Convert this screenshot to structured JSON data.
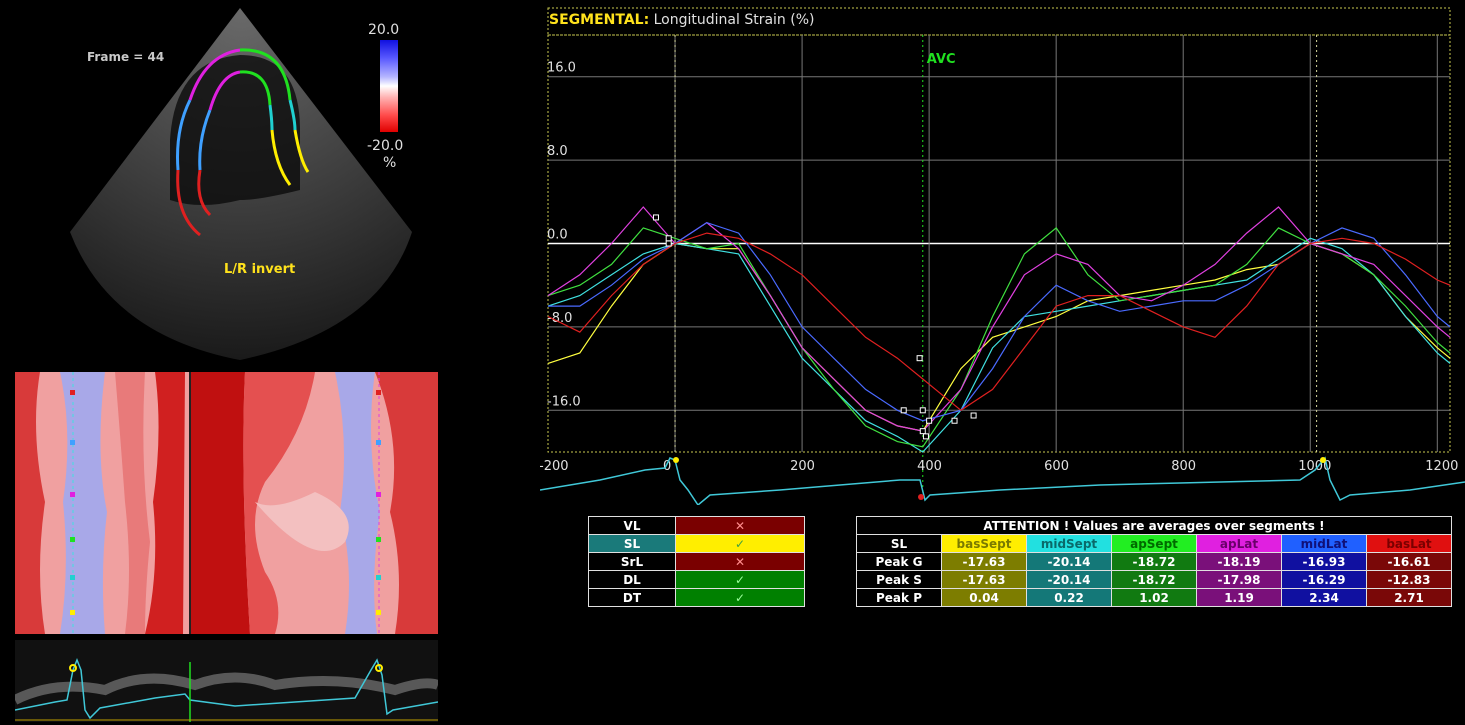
{
  "echo": {
    "frame_label": "Frame = 44",
    "scale_max": "20.0",
    "scale_min": "-20.0",
    "scale_unit": "%",
    "orientation_label": "L/R invert"
  },
  "chart": {
    "title_prefix": "SEGMENTAL:",
    "title_rest": " Longitudinal Strain (%)",
    "avc_label": "AVC",
    "y_ticks": [
      "16.0",
      "8.0",
      "0.0",
      "-8.0",
      "-16.0"
    ],
    "x_ticks": [
      "-200",
      "0",
      "200",
      "400",
      "600",
      "800",
      "1000",
      "1200"
    ]
  },
  "chart_data": {
    "type": "line",
    "title": "SEGMENTAL: Longitudinal Strain (%)",
    "xlim": [
      -200,
      1220
    ],
    "ylim": [
      -20,
      20
    ],
    "x": [
      -200,
      -150,
      -100,
      -50,
      0,
      50,
      100,
      150,
      200,
      250,
      300,
      350,
      390,
      450,
      500,
      550,
      600,
      650,
      700,
      750,
      800,
      850,
      900,
      950,
      1000,
      1050,
      1100,
      1150,
      1200,
      1220
    ],
    "series": [
      {
        "name": "basSept",
        "color": "#ffff40",
        "values": [
          -11.5,
          -10.5,
          -6,
          -2,
          0,
          -0.5,
          -0.5,
          -5,
          -10,
          -13,
          -16,
          -17.5,
          -18,
          -12,
          -9,
          -8,
          -7,
          -5.5,
          -5,
          -4.5,
          -4,
          -3.5,
          -2.5,
          -2,
          0,
          -1,
          -3,
          -7,
          -10,
          -11
        ]
      },
      {
        "name": "midSept",
        "color": "#40e0e0",
        "values": [
          -6,
          -5,
          -3,
          -1,
          0,
          -0.5,
          -1,
          -6,
          -11,
          -14,
          -17,
          -18.5,
          -20,
          -16,
          -10,
          -7,
          -6.5,
          -6,
          -5.5,
          -5,
          -4.5,
          -4,
          -3.5,
          -1.5,
          0.5,
          -0.5,
          -3,
          -7,
          -10.5,
          -11.5
        ]
      },
      {
        "name": "apSept",
        "color": "#40e040",
        "values": [
          -5,
          -4,
          -2,
          1.5,
          0.5,
          -0.5,
          0,
          -5,
          -10,
          -14,
          -17.5,
          -19,
          -19.5,
          -14,
          -7,
          -1,
          1.5,
          -3,
          -5.5,
          -5,
          -4.5,
          -4,
          -2,
          1.5,
          0,
          -1,
          -3,
          -6,
          -9.5,
          -10.5
        ]
      },
      {
        "name": "apLat",
        "color": "#e040e0",
        "values": [
          -5,
          -3,
          0,
          3.5,
          0,
          2,
          -0.5,
          -5,
          -10,
          -13,
          -16,
          -17.5,
          -18,
          -14,
          -8,
          -3,
          -1,
          -2,
          -5,
          -5.5,
          -4,
          -2,
          1,
          3.5,
          0,
          -1,
          -2,
          -5,
          -8,
          -9
        ]
      },
      {
        "name": "midLat",
        "color": "#4a6aff",
        "values": [
          -6,
          -6,
          -4,
          -1.5,
          0,
          2,
          1,
          -3,
          -8,
          -11,
          -14,
          -16,
          -17,
          -16,
          -12,
          -7,
          -4,
          -5.5,
          -6.5,
          -6,
          -5.5,
          -5.5,
          -4,
          -2,
          0,
          1.5,
          0.5,
          -3,
          -7,
          -8
        ]
      },
      {
        "name": "basLat",
        "color": "#e02020",
        "values": [
          -7,
          -8.5,
          -5,
          -2,
          0,
          1,
          0.5,
          -1,
          -3,
          -6,
          -9,
          -11,
          -13,
          -16,
          -14,
          -10,
          -6,
          -5,
          -5,
          -6.5,
          -8,
          -9,
          -6,
          -2,
          0,
          0.5,
          0,
          -1.5,
          -3.5,
          -4
        ]
      }
    ]
  },
  "mode_table": {
    "rows": [
      {
        "label": "VL",
        "state": "✕",
        "color": "#7a0000",
        "type": "x"
      },
      {
        "label": "SL",
        "state": "✓",
        "color": "#ffee00",
        "type": "chk"
      },
      {
        "label": "SrL",
        "state": "✕",
        "color": "#7a0000",
        "type": "x"
      },
      {
        "label": "DL",
        "state": "✓",
        "color": "#008000",
        "type": "chk"
      },
      {
        "label": "DT",
        "state": "✓",
        "color": "#008000",
        "type": "chk"
      }
    ]
  },
  "peak_table": {
    "header": "ATTENTION !  Values are averages over segments !",
    "corner": "SL",
    "columns": [
      {
        "name": "basSept",
        "bg": "#ffee00",
        "fg": "#7a7a00",
        "cell": "#7d7d00"
      },
      {
        "name": "midSept",
        "bg": "#22e0e0",
        "fg": "#0a6a6a",
        "cell": "#147878"
      },
      {
        "name": "apSept",
        "bg": "#22ee22",
        "fg": "#006a00",
        "cell": "#117a11"
      },
      {
        "name": "apLat",
        "bg": "#e020e0",
        "fg": "#6a006a",
        "cell": "#7a107a"
      },
      {
        "name": "midLat",
        "bg": "#2060ff",
        "fg": "#101078",
        "cell": "#1010a0"
      },
      {
        "name": "basLat",
        "bg": "#e01010",
        "fg": "#7a0000",
        "cell": "#7a0808"
      }
    ],
    "rows": [
      {
        "label": "Peak G",
        "values": [
          "-17.63",
          "-20.14",
          "-18.72",
          "-18.19",
          "-16.93",
          "-16.61"
        ]
      },
      {
        "label": "Peak S",
        "values": [
          "-17.63",
          "-20.14",
          "-18.72",
          "-17.98",
          "-16.29",
          "-12.83"
        ]
      },
      {
        "label": "Peak P",
        "values": [
          "0.04",
          "0.22",
          "1.02",
          "1.19",
          "2.34",
          "2.71"
        ]
      }
    ]
  }
}
